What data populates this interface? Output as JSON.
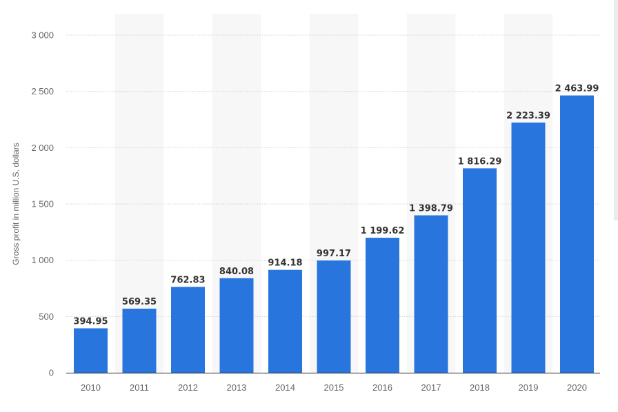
{
  "chart_data": {
    "type": "bar",
    "categories": [
      "2010",
      "2011",
      "2012",
      "2013",
      "2014",
      "2015",
      "2016",
      "2017",
      "2018",
      "2019",
      "2020"
    ],
    "values": [
      394.95,
      569.35,
      762.83,
      840.08,
      914.18,
      997.17,
      1199.62,
      1398.79,
      1816.29,
      2223.39,
      2463.99
    ],
    "value_labels": [
      "394.95",
      "569.35",
      "762.83",
      "840.08",
      "914.18",
      "997.17",
      "1 199.62",
      "1 398.79",
      "1 816.29",
      "2 223.39",
      "2 463.99"
    ],
    "ylabel": "Gross profit in million U.S. dollars",
    "xlabel": "",
    "ylim": [
      0,
      3000
    ],
    "yticks": [
      0,
      500,
      1000,
      1500,
      2000,
      2500,
      3000
    ],
    "ytick_labels": [
      "0",
      "500",
      "1 000",
      "1 500",
      "2 000",
      "2 500",
      "3 000"
    ],
    "grid": true,
    "legend": "none",
    "colors": {
      "bar": "#2876dd",
      "alt_band": "#f7f7f7",
      "grid": "#cfcfcf",
      "axis": "#222222"
    }
  }
}
